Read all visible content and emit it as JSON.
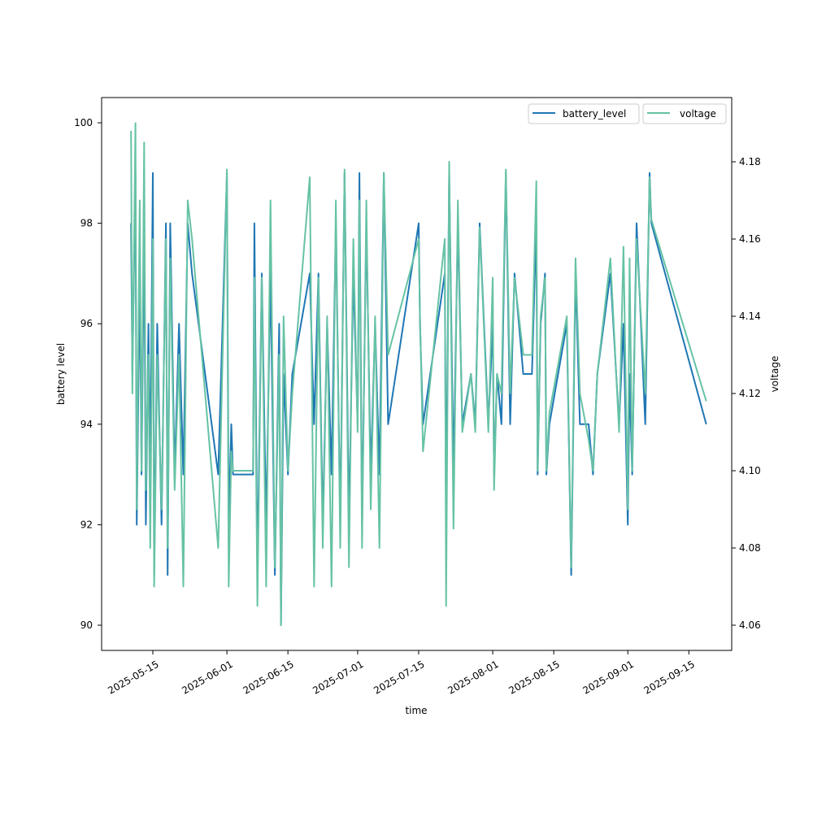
{
  "chart_data": {
    "type": "line",
    "xlabel": "time",
    "ylabel": "battery level",
    "ylabel_right": "voltage",
    "x_ticks": [
      "2025-05-15",
      "2025-06-01",
      "2025-06-15",
      "2025-07-01",
      "2025-07-15",
      "2025-08-01",
      "2025-08-15",
      "2025-09-01",
      "2025-09-15"
    ],
    "y_ticks": [
      90,
      92,
      94,
      96,
      98,
      100
    ],
    "y_ticks_right": [
      "4.06",
      "4.08",
      "4.10",
      "4.12",
      "4.14",
      "4.16",
      "4.18"
    ],
    "ylim": [
      89.5,
      100.5
    ],
    "ylim_right": [
      4.054,
      4.196
    ],
    "legend": [
      {
        "label": "battery_level",
        "color": "#1f77b4"
      },
      {
        "label": "voltage",
        "color": "#66c2a5"
      }
    ],
    "legend_placement": "top-right",
    "series": [
      {
        "name": "battery_level",
        "axis": "left",
        "color": "#1f77b4",
        "points": [
          [
            "2025-05-10",
            98
          ],
          [
            "2025-05-10.3",
            95
          ],
          [
            "2025-05-11",
            99
          ],
          [
            "2025-05-11.3",
            92
          ],
          [
            "2025-05-12",
            97
          ],
          [
            "2025-05-12.4",
            93
          ],
          [
            "2025-05-13",
            98
          ],
          [
            "2025-05-13.4",
            92
          ],
          [
            "2025-05-14",
            96
          ],
          [
            "2025-05-14.4",
            93
          ],
          [
            "2025-05-15",
            99
          ],
          [
            "2025-05-15.3",
            91
          ],
          [
            "2025-05-16",
            96
          ],
          [
            "2025-05-17",
            92
          ],
          [
            "2025-05-18",
            98
          ],
          [
            "2025-05-18.4",
            91
          ],
          [
            "2025-05-19",
            98
          ],
          [
            "2025-05-20",
            93
          ],
          [
            "2025-05-21",
            96
          ],
          [
            "2025-05-22",
            93
          ],
          [
            "2025-05-23",
            98
          ],
          [
            "2025-05-24",
            97
          ],
          [
            "2025-05-30",
            93
          ],
          [
            "2025-06-01",
            99
          ],
          [
            "2025-06-01.4",
            92
          ],
          [
            "2025-06-02",
            94
          ],
          [
            "2025-06-02.4",
            93
          ],
          [
            "2025-06-07",
            93
          ],
          [
            "2025-06-07.3",
            98
          ],
          [
            "2025-06-08",
            91
          ],
          [
            "2025-06-09",
            97
          ],
          [
            "2025-06-10",
            92
          ],
          [
            "2025-06-11",
            97
          ],
          [
            "2025-06-12",
            91
          ],
          [
            "2025-06-13",
            96
          ],
          [
            "2025-06-13.4",
            90
          ],
          [
            "2025-06-14",
            95
          ],
          [
            "2025-06-15",
            93
          ],
          [
            "2025-06-16",
            95
          ],
          [
            "2025-06-20",
            97
          ],
          [
            "2025-06-21",
            94
          ],
          [
            "2025-06-22",
            97
          ],
          [
            "2025-06-23",
            92
          ],
          [
            "2025-06-24",
            96
          ],
          [
            "2025-06-25",
            93
          ],
          [
            "2025-06-26",
            98
          ],
          [
            "2025-06-27",
            92
          ],
          [
            "2025-06-28",
            99
          ],
          [
            "2025-06-29",
            92
          ],
          [
            "2025-06-30",
            97
          ],
          [
            "2025-07-01",
            94
          ],
          [
            "2025-07-01.4",
            99
          ],
          [
            "2025-07-02",
            92
          ],
          [
            "2025-07-03",
            98
          ],
          [
            "2025-07-04",
            93
          ],
          [
            "2025-07-05",
            96
          ],
          [
            "2025-07-06",
            93
          ],
          [
            "2025-07-07",
            99
          ],
          [
            "2025-07-08",
            94
          ],
          [
            "2025-07-15",
            98
          ],
          [
            "2025-07-15.3",
            96
          ],
          [
            "2025-07-16",
            94
          ],
          [
            "2025-07-21",
            97
          ],
          [
            "2025-07-21.3",
            92
          ],
          [
            "2025-07-22",
            99
          ],
          [
            "2025-07-23",
            93
          ],
          [
            "2025-07-24",
            98
          ],
          [
            "2025-07-25",
            94
          ],
          [
            "2025-07-27",
            95
          ],
          [
            "2025-07-28",
            94
          ],
          [
            "2025-07-29",
            98
          ],
          [
            "2025-07-31",
            94
          ],
          [
            "2025-08-01",
            96
          ],
          [
            "2025-08-01.3",
            93
          ],
          [
            "2025-08-02",
            95
          ],
          [
            "2025-08-03",
            94
          ],
          [
            "2025-08-04",
            99
          ],
          [
            "2025-08-05",
            94
          ],
          [
            "2025-08-06",
            97
          ],
          [
            "2025-08-08",
            95
          ],
          [
            "2025-08-10",
            95
          ],
          [
            "2025-08-11",
            98
          ],
          [
            "2025-08-11.3",
            93
          ],
          [
            "2025-08-12",
            96
          ],
          [
            "2025-08-13",
            97
          ],
          [
            "2025-08-13.3",
            93
          ],
          [
            "2025-08-14",
            94
          ],
          [
            "2025-08-18",
            96
          ],
          [
            "2025-08-19",
            91
          ],
          [
            "2025-08-20",
            97
          ],
          [
            "2025-08-21",
            94
          ],
          [
            "2025-08-23",
            94
          ],
          [
            "2025-08-24",
            93
          ],
          [
            "2025-08-25",
            95
          ],
          [
            "2025-08-28",
            97
          ],
          [
            "2025-08-30",
            94
          ],
          [
            "2025-08-31",
            96
          ],
          [
            "2025-09-01",
            92
          ],
          [
            "2025-09-01.4",
            95
          ],
          [
            "2025-09-02",
            93
          ],
          [
            "2025-09-03",
            98
          ],
          [
            "2025-09-05",
            94
          ],
          [
            "2025-09-06",
            99
          ],
          [
            "2025-09-06.4",
            98
          ],
          [
            "2025-09-19",
            94
          ]
        ]
      },
      {
        "name": "voltage",
        "axis": "right",
        "color": "#66c2a5",
        "points": [
          [
            "2025-05-10",
            4.188
          ],
          [
            "2025-05-10.3",
            4.12
          ],
          [
            "2025-05-11",
            4.19
          ],
          [
            "2025-05-11.3",
            4.09
          ],
          [
            "2025-05-12",
            4.17
          ],
          [
            "2025-05-12.4",
            4.1
          ],
          [
            "2025-05-13",
            4.185
          ],
          [
            "2025-05-13.4",
            4.095
          ],
          [
            "2025-05-14",
            4.13
          ],
          [
            "2025-05-14.4",
            4.08
          ],
          [
            "2025-05-15",
            4.16
          ],
          [
            "2025-05-15.3",
            4.07
          ],
          [
            "2025-05-16",
            4.13
          ],
          [
            "2025-05-17",
            4.09
          ],
          [
            "2025-05-18",
            4.16
          ],
          [
            "2025-05-18.4",
            4.08
          ],
          [
            "2025-05-19",
            4.155
          ],
          [
            "2025-05-20",
            4.095
          ],
          [
            "2025-05-21",
            4.13
          ],
          [
            "2025-05-22",
            4.07
          ],
          [
            "2025-05-23",
            4.17
          ],
          [
            "2025-05-24",
            4.16
          ],
          [
            "2025-05-30",
            4.08
          ],
          [
            "2025-06-01",
            4.178
          ],
          [
            "2025-06-01.4",
            4.07
          ],
          [
            "2025-06-02",
            4.105
          ],
          [
            "2025-06-02.4",
            4.1
          ],
          [
            "2025-06-07",
            4.1
          ],
          [
            "2025-06-07.3",
            4.15
          ],
          [
            "2025-06-08",
            4.065
          ],
          [
            "2025-06-09",
            4.15
          ],
          [
            "2025-06-10",
            4.07
          ],
          [
            "2025-06-11",
            4.17
          ],
          [
            "2025-06-12",
            4.075
          ],
          [
            "2025-06-13",
            4.13
          ],
          [
            "2025-06-13.4",
            4.06
          ],
          [
            "2025-06-14",
            4.14
          ],
          [
            "2025-06-15",
            4.1
          ],
          [
            "2025-06-16",
            4.12
          ],
          [
            "2025-06-20",
            4.176
          ],
          [
            "2025-06-21",
            4.07
          ],
          [
            "2025-06-22",
            4.15
          ],
          [
            "2025-06-23",
            4.08
          ],
          [
            "2025-06-24",
            4.14
          ],
          [
            "2025-06-25",
            4.07
          ],
          [
            "2025-06-26",
            4.17
          ],
          [
            "2025-06-27",
            4.08
          ],
          [
            "2025-06-28",
            4.178
          ],
          [
            "2025-06-29",
            4.075
          ],
          [
            "2025-06-30",
            4.16
          ],
          [
            "2025-07-01",
            4.11
          ],
          [
            "2025-07-01.4",
            4.17
          ],
          [
            "2025-07-02",
            4.08
          ],
          [
            "2025-07-03",
            4.17
          ],
          [
            "2025-07-04",
            4.09
          ],
          [
            "2025-07-05",
            4.14
          ],
          [
            "2025-07-06",
            4.08
          ],
          [
            "2025-07-07",
            4.177
          ],
          [
            "2025-07-08",
            4.13
          ],
          [
            "2025-07-15",
            4.16
          ],
          [
            "2025-07-15.3",
            4.14
          ],
          [
            "2025-07-16",
            4.105
          ],
          [
            "2025-07-21",
            4.16
          ],
          [
            "2025-07-21.3",
            4.065
          ],
          [
            "2025-07-22",
            4.18
          ],
          [
            "2025-07-23",
            4.085
          ],
          [
            "2025-07-24",
            4.17
          ],
          [
            "2025-07-25",
            4.11
          ],
          [
            "2025-07-27",
            4.125
          ],
          [
            "2025-07-28",
            4.11
          ],
          [
            "2025-07-29",
            4.163
          ],
          [
            "2025-07-31",
            4.11
          ],
          [
            "2025-08-01",
            4.15
          ],
          [
            "2025-08-01.3",
            4.095
          ],
          [
            "2025-08-02",
            4.125
          ],
          [
            "2025-08-03",
            4.12
          ],
          [
            "2025-08-04",
            4.178
          ],
          [
            "2025-08-05",
            4.12
          ],
          [
            "2025-08-06",
            4.15
          ],
          [
            "2025-08-08",
            4.13
          ],
          [
            "2025-08-10",
            4.13
          ],
          [
            "2025-08-11",
            4.175
          ],
          [
            "2025-08-11.3",
            4.1
          ],
          [
            "2025-08-12",
            4.14
          ],
          [
            "2025-08-13",
            4.15
          ],
          [
            "2025-08-13.3",
            4.1
          ],
          [
            "2025-08-14",
            4.115
          ],
          [
            "2025-08-18",
            4.14
          ],
          [
            "2025-08-19",
            4.075
          ],
          [
            "2025-08-20",
            4.155
          ],
          [
            "2025-08-21",
            4.12
          ],
          [
            "2025-08-23",
            4.108
          ],
          [
            "2025-08-24",
            4.1
          ],
          [
            "2025-08-25",
            4.125
          ],
          [
            "2025-08-28",
            4.155
          ],
          [
            "2025-08-30",
            4.11
          ],
          [
            "2025-08-31",
            4.158
          ],
          [
            "2025-09-01",
            4.09
          ],
          [
            "2025-09-01.4",
            4.155
          ],
          [
            "2025-09-02",
            4.1
          ],
          [
            "2025-09-03",
            4.16
          ],
          [
            "2025-09-05",
            4.12
          ],
          [
            "2025-09-06",
            4.176
          ],
          [
            "2025-09-06.4",
            4.165
          ],
          [
            "2025-09-19",
            4.118
          ]
        ]
      }
    ]
  }
}
